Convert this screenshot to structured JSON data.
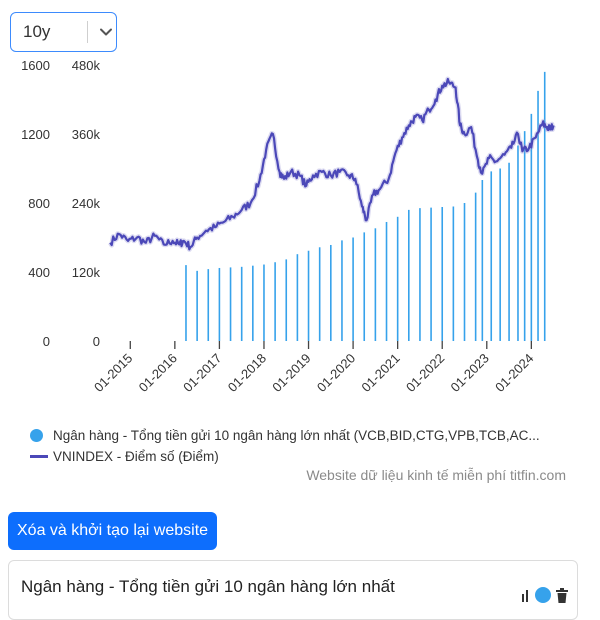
{
  "range_select": {
    "value": "10y",
    "icon": "chevron-down-icon"
  },
  "chart_data": {
    "type": "bar+line",
    "title": "",
    "y_left": {
      "ticks": [
        "0",
        "400",
        "800",
        "1200",
        "1600"
      ],
      "range": [
        0,
        1600
      ]
    },
    "y_right": {
      "ticks": [
        "0",
        "120k",
        "240k",
        "360k",
        "480k"
      ],
      "range": [
        0,
        480000
      ]
    },
    "x_ticks": [
      "01-2015",
      "01-2016",
      "01-2017",
      "01-2018",
      "01-2019",
      "01-2020",
      "01-2021",
      "01-2022",
      "01-2023",
      "01-2024"
    ],
    "x_range": [
      2014.5,
      2024.8
    ],
    "bar_series": {
      "name": "Ngân hàng - Tổng tiền gửi 10 ngân hàng lớn nhất (VCB,BID,CTG,VPB,TCB,AC...",
      "color": "#36a2eb",
      "points": [
        [
          2016.25,
          132000
        ],
        [
          2016.5,
          122000
        ],
        [
          2016.75,
          125000
        ],
        [
          2017.0,
          127000
        ],
        [
          2017.25,
          128000
        ],
        [
          2017.5,
          129000
        ],
        [
          2017.75,
          131000
        ],
        [
          2018.0,
          133000
        ],
        [
          2018.25,
          137000
        ],
        [
          2018.5,
          142000
        ],
        [
          2018.75,
          151000
        ],
        [
          2019.0,
          157000
        ],
        [
          2019.25,
          163000
        ],
        [
          2019.5,
          167000
        ],
        [
          2019.75,
          175000
        ],
        [
          2020.0,
          180000
        ],
        [
          2020.25,
          189000
        ],
        [
          2020.5,
          196000
        ],
        [
          2020.75,
          207000
        ],
        [
          2021.0,
          216000
        ],
        [
          2021.25,
          228000
        ],
        [
          2021.5,
          231000
        ],
        [
          2021.75,
          232000
        ],
        [
          2022.0,
          233000
        ],
        [
          2022.25,
          234000
        ],
        [
          2022.5,
          240000
        ],
        [
          2022.75,
          258000
        ],
        [
          2022.9,
          280000
        ],
        [
          2023.1,
          295000
        ],
        [
          2023.3,
          300000
        ],
        [
          2023.5,
          310000
        ],
        [
          2023.7,
          340000
        ],
        [
          2023.85,
          365000
        ],
        [
          2024.0,
          395000
        ],
        [
          2024.15,
          435000
        ],
        [
          2024.3,
          468000
        ]
      ]
    },
    "line_series": {
      "name": "VNINDEX - Điểm số (Điểm)",
      "color": "#4b48b8",
      "points": [
        [
          2014.55,
          570
        ],
        [
          2014.75,
          620
        ],
        [
          2014.95,
          580
        ],
        [
          2015.15,
          600
        ],
        [
          2015.35,
          570
        ],
        [
          2015.55,
          610
        ],
        [
          2015.75,
          560
        ],
        [
          2015.95,
          580
        ],
        [
          2016.1,
          560
        ],
        [
          2016.2,
          580
        ],
        [
          2016.35,
          545
        ],
        [
          2016.5,
          600
        ],
        [
          2016.7,
          640
        ],
        [
          2016.9,
          660
        ],
        [
          2017.1,
          690
        ],
        [
          2017.3,
          720
        ],
        [
          2017.5,
          760
        ],
        [
          2017.7,
          800
        ],
        [
          2017.9,
          930
        ],
        [
          2018.05,
          1110
        ],
        [
          2018.2,
          1200
        ],
        [
          2018.35,
          980
        ],
        [
          2018.45,
          940
        ],
        [
          2018.6,
          980
        ],
        [
          2018.8,
          960
        ],
        [
          2018.95,
          900
        ],
        [
          2019.1,
          960
        ],
        [
          2019.3,
          980
        ],
        [
          2019.5,
          960
        ],
        [
          2019.7,
          980
        ],
        [
          2019.9,
          960
        ],
        [
          2020.05,
          940
        ],
        [
          2020.2,
          780
        ],
        [
          2020.3,
          700
        ],
        [
          2020.45,
          850
        ],
        [
          2020.6,
          880
        ],
        [
          2020.8,
          940
        ],
        [
          2020.95,
          1090
        ],
        [
          2021.1,
          1180
        ],
        [
          2021.25,
          1250
        ],
        [
          2021.4,
          1300
        ],
        [
          2021.55,
          1280
        ],
        [
          2021.7,
          1340
        ],
        [
          2021.85,
          1400
        ],
        [
          2022.0,
          1480
        ],
        [
          2022.15,
          1500
        ],
        [
          2022.3,
          1470
        ],
        [
          2022.4,
          1250
        ],
        [
          2022.5,
          1200
        ],
        [
          2022.65,
          1240
        ],
        [
          2022.8,
          1050
        ],
        [
          2022.9,
          970
        ],
        [
          2023.05,
          1060
        ],
        [
          2023.2,
          1040
        ],
        [
          2023.4,
          1080
        ],
        [
          2023.55,
          1120
        ],
        [
          2023.7,
          1200
        ],
        [
          2023.8,
          1100
        ],
        [
          2023.95,
          1120
        ],
        [
          2024.1,
          1180
        ],
        [
          2024.25,
          1260
        ],
        [
          2024.35,
          1240
        ],
        [
          2024.42,
          1230
        ],
        [
          2024.5,
          1250
        ]
      ]
    },
    "legend_position": "bottom",
    "grid": false
  },
  "legend": {
    "bars_label": "Ngân hàng - Tổng tiền gửi 10 ngân hàng lớn nhất (VCB,BID,CTG,VPB,TCB,AC...",
    "line_label": "VNINDEX - Điểm số (Điểm)"
  },
  "credit": "Website dữ liệu kinh tế miễn phí titfin.com",
  "reset_button": "Xóa và khởi tạo lại website",
  "card": {
    "title": "Ngân hàng - Tổng tiền gửi 10 ngân hàng lớn nhất"
  }
}
